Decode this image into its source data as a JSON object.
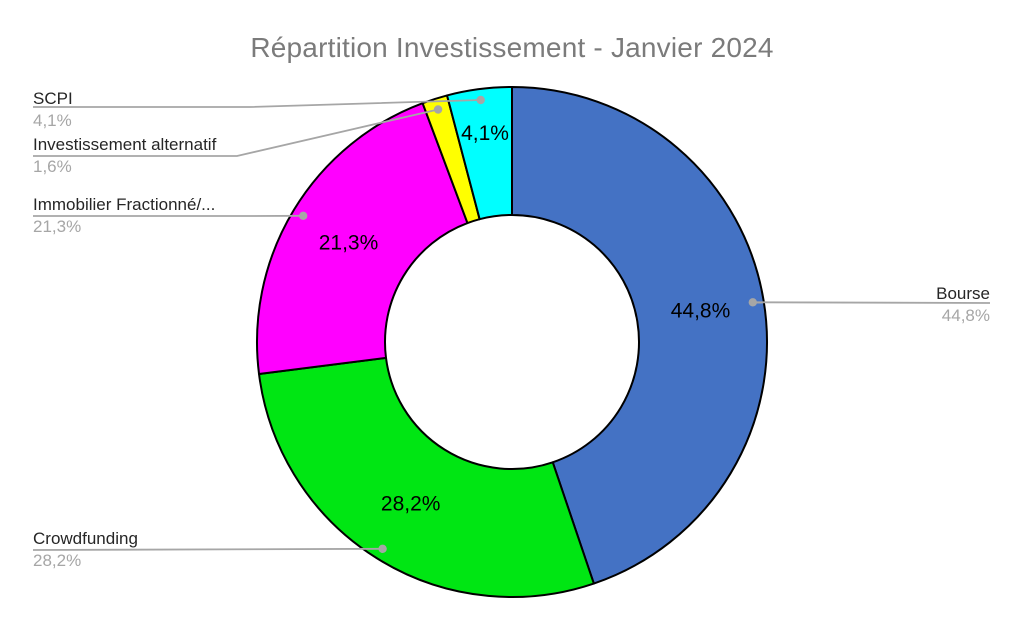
{
  "chart_data": {
    "type": "pie",
    "subtype": "donut",
    "title": "Répartition Investissement - Janvier 2024",
    "hole_ratio": 0.5,
    "start_angle_deg": 0,
    "direction": "clockwise",
    "legend_position": "none",
    "categories": [
      "Bourse",
      "Crowdfunding",
      "Immobilier Fractionné/...",
      "Investissement alternatif",
      "SCPI"
    ],
    "values": [
      44.8,
      28.2,
      21.3,
      1.6,
      4.1
    ],
    "value_labels": [
      "44,8%",
      "28,2%",
      "21,3%",
      "1,6%",
      "4,1%"
    ],
    "slice_value_label_shown": [
      true,
      true,
      true,
      false,
      true
    ],
    "colors": [
      "#4472C4",
      "#00E613",
      "#FF00FF",
      "#FFFF00",
      "#00FFFF"
    ],
    "style": {
      "background": "#FFFFFF",
      "title_color": "#7B7B7B",
      "category_label_color": "#262626",
      "percent_label_color": "#A6A6A6",
      "leader_line_color": "#A6A6A6",
      "slice_outline_color": "#000000",
      "value_label_color": "#000000"
    }
  }
}
